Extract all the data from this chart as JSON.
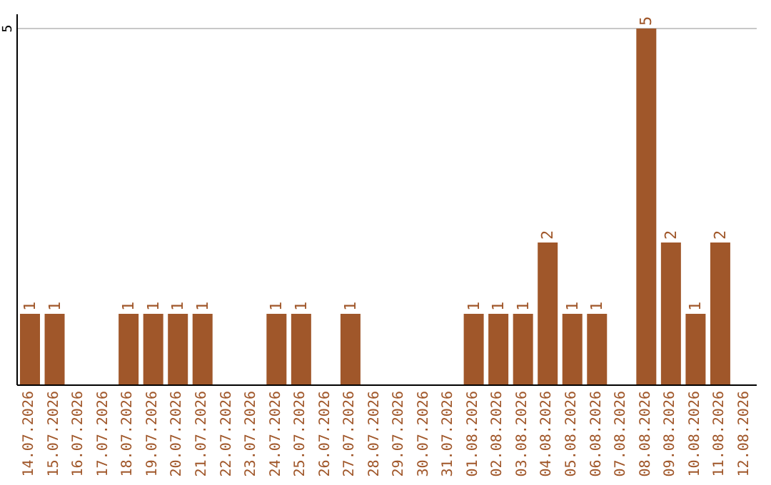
{
  "chart_data": {
    "type": "bar",
    "categories": [
      "14.07.2026",
      "15.07.2026",
      "16.07.2026",
      "17.07.2026",
      "18.07.2026",
      "19.07.2026",
      "20.07.2026",
      "21.07.2026",
      "22.07.2026",
      "23.07.2026",
      "24.07.2026",
      "25.07.2026",
      "26.07.2026",
      "27.07.2026",
      "28.07.2026",
      "29.07.2026",
      "30.07.2026",
      "31.07.2026",
      "01.08.2026",
      "02.08.2026",
      "03.08.2026",
      "04.08.2026",
      "05.08.2026",
      "06.08.2026",
      "07.08.2026",
      "08.08.2026",
      "09.08.2026",
      "10.08.2026",
      "11.08.2026",
      "12.08.2026"
    ],
    "values": [
      1,
      1,
      0,
      0,
      1,
      1,
      1,
      1,
      0,
      0,
      1,
      1,
      0,
      1,
      0,
      0,
      0,
      0,
      1,
      1,
      1,
      2,
      1,
      1,
      0,
      5,
      2,
      1,
      2,
      0
    ],
    "value_labels": [
      "1",
      "1",
      null,
      null,
      "1",
      "1",
      "1",
      "1",
      null,
      null,
      "1",
      "1",
      null,
      "1",
      null,
      null,
      null,
      null,
      "1",
      "1",
      "1",
      "2",
      "1",
      "1",
      null,
      "5",
      "2",
      "1",
      "2",
      null
    ],
    "color": "#a0572a",
    "ylim": [
      0,
      5.2
    ],
    "yticks": [
      5
    ],
    "grid": "y",
    "legend": false
  }
}
